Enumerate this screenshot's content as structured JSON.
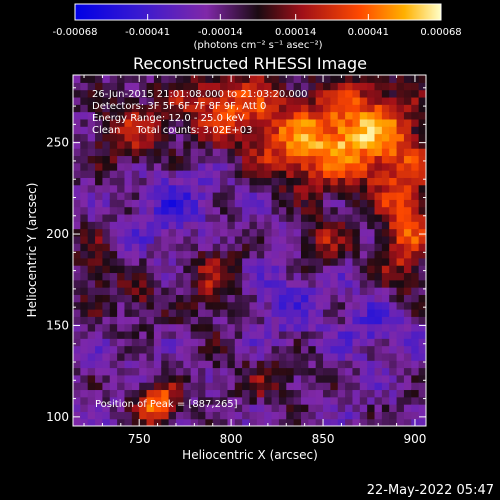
{
  "chart_data": {
    "type": "heatmap",
    "title": "Reconstructed RHESSI Image",
    "xlabel": "Heliocentric X (arcsec)",
    "ylabel": "Heliocentric Y (arcsec)",
    "xlim": [
      714,
      906
    ],
    "ylim": [
      95,
      287
    ],
    "x_ticks": [
      750,
      800,
      850,
      900
    ],
    "y_ticks": [
      100,
      150,
      200,
      250
    ],
    "colorbar": {
      "ticks": [
        "-0.00068",
        "-0.00041",
        "-0.00014",
        "0.00014",
        "0.00041",
        "0.00068"
      ],
      "range": [
        -0.00068,
        0.00068
      ],
      "units_label": "(photons cm⁻² s⁻¹ asec⁻²)"
    },
    "annotations": [
      "26-Jun-2015 21:01:08.000 to 21:03:20.000",
      "Detectors: 3F 5F 6F 7F 8F 9F, Att 0",
      "Energy Range: 12.0 - 25.0 keV",
      "Clean     Total counts: 3.02E+03"
    ],
    "peak_label": "Position of Peak = [887,265]",
    "peak": [
      887,
      265
    ],
    "sources": [
      {
        "x": 870,
        "y": 255,
        "amp": 0.00068,
        "sx": 22,
        "sy": 20
      },
      {
        "x": 835,
        "y": 245,
        "amp": 0.0004,
        "sx": 16,
        "sy": 13
      },
      {
        "x": 800,
        "y": 270,
        "amp": 0.0005,
        "sx": 22,
        "sy": 14
      },
      {
        "x": 895,
        "y": 205,
        "amp": 0.00048,
        "sx": 10,
        "sy": 26
      },
      {
        "x": 760,
        "y": 107,
        "amp": 0.00062,
        "sx": 8,
        "sy": 8
      },
      {
        "x": 745,
        "y": 255,
        "amp": 0.00032,
        "sx": 15,
        "sy": 15
      },
      {
        "x": 790,
        "y": 175,
        "amp": 0.00028,
        "sx": 12,
        "sy": 18
      },
      {
        "x": 725,
        "y": 180,
        "amp": 0.00025,
        "sx": 8,
        "sy": 14
      },
      {
        "x": 850,
        "y": 195,
        "amp": 0.0003,
        "sx": 10,
        "sy": 10
      },
      {
        "x": 750,
        "y": 165,
        "amp": 0.00024,
        "sx": 8,
        "sy": 10
      },
      {
        "x": 820,
        "y": 120,
        "amp": 0.00018,
        "sx": 20,
        "sy": 10
      },
      {
        "x": 880,
        "y": 150,
        "amp": -0.0002,
        "sx": 14,
        "sy": 12
      },
      {
        "x": 770,
        "y": 215,
        "amp": -0.00025,
        "sx": 14,
        "sy": 16
      },
      {
        "x": 830,
        "y": 165,
        "amp": -0.00018,
        "sx": 16,
        "sy": 14
      }
    ]
  },
  "footer_timestamp": "22-May-2022 05:47"
}
